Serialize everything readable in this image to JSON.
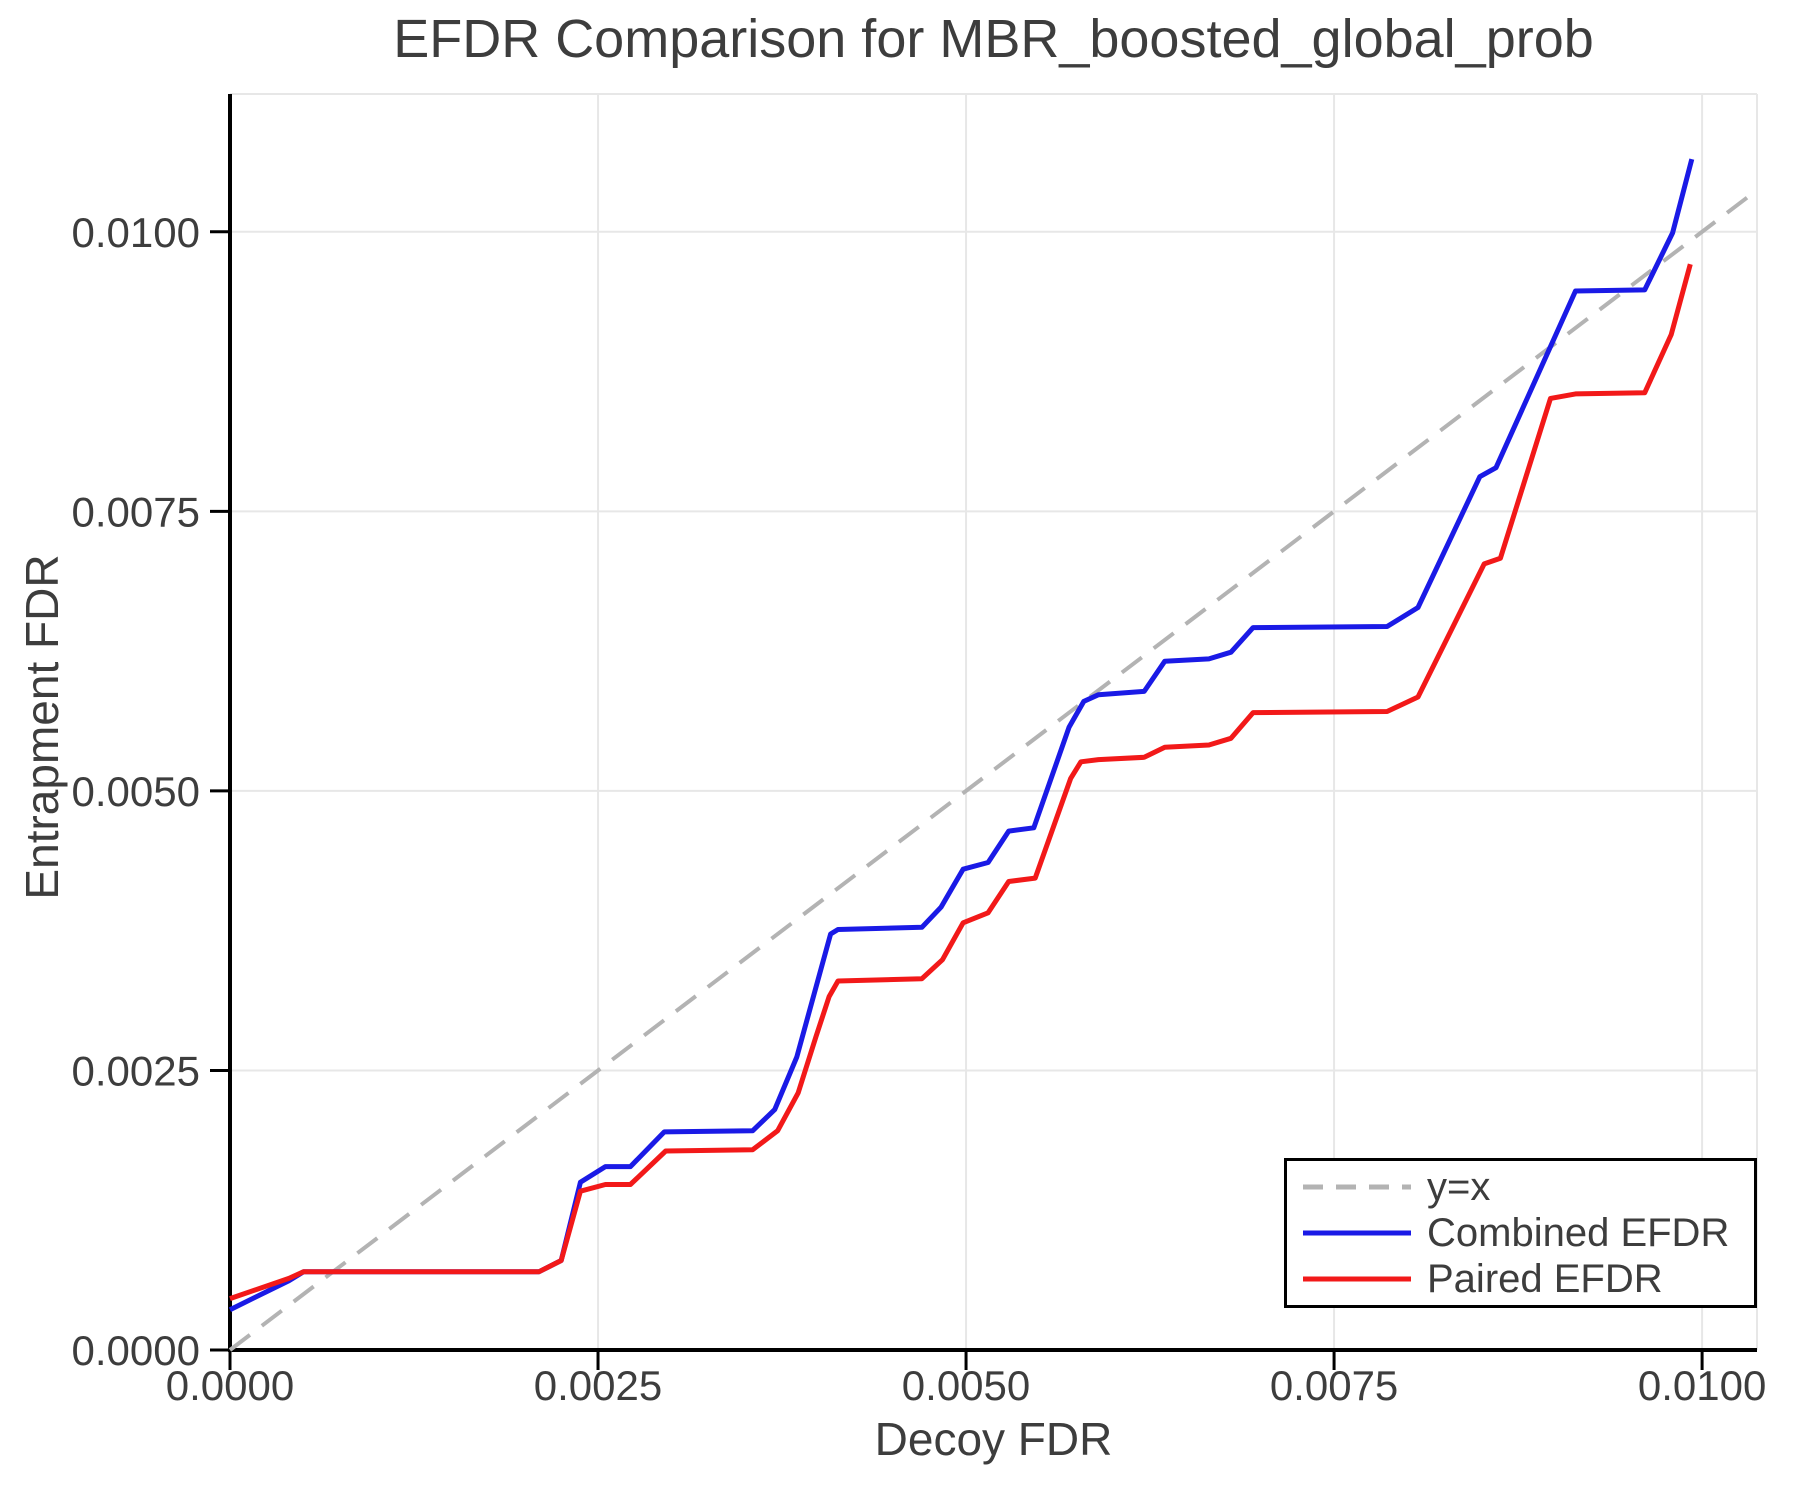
{
  "chart_data": {
    "type": "line",
    "title": "EFDR Comparison for MBR_boosted_global_prob",
    "xlabel": "Decoy FDR",
    "ylabel": "Entrapment FDR",
    "xlim": [
      0,
      0.010373
    ],
    "ylim": [
      0,
      0.011232
    ],
    "grid": true,
    "legend_position": "bottom-right",
    "x_ticks": {
      "values": [
        0,
        0.0025,
        0.005,
        0.0075,
        0.01
      ],
      "labels": [
        "0.0000",
        "0.0025",
        "0.0050",
        "0.0075",
        "0.0100"
      ]
    },
    "y_ticks": {
      "values": [
        0,
        0.0025,
        0.005,
        0.0075,
        0.01
      ],
      "labels": [
        "0.0000",
        "0.0025",
        "0.0050",
        "0.0075",
        "0.0100"
      ]
    },
    "series": [
      {
        "name": "y=x",
        "role": "reference",
        "color": "#b3b3b3",
        "dash": true,
        "points": [
          [
            0,
            0
          ],
          [
            0.010373,
            0.010373
          ]
        ]
      },
      {
        "name": "Combined EFDR",
        "role": "data",
        "color": "#1a1ae6",
        "dash": false,
        "points": [
          [
            0.0,
            0.00036
          ],
          [
            0.0004,
            0.00062
          ],
          [
            0.0005,
            0.0007
          ],
          [
            0.0021,
            0.0007
          ],
          [
            0.00225,
            0.0008
          ],
          [
            0.00238,
            0.0015
          ],
          [
            0.00255,
            0.00164
          ],
          [
            0.00272,
            0.00164
          ],
          [
            0.00295,
            0.00195
          ],
          [
            0.00355,
            0.00196
          ],
          [
            0.0037,
            0.00215
          ],
          [
            0.00385,
            0.00262
          ],
          [
            0.00408,
            0.00372
          ],
          [
            0.00413,
            0.00376
          ],
          [
            0.0047,
            0.00378
          ],
          [
            0.00483,
            0.00396
          ],
          [
            0.00498,
            0.0043
          ],
          [
            0.00515,
            0.00436
          ],
          [
            0.00529,
            0.00464
          ],
          [
            0.00546,
            0.00467
          ],
          [
            0.0057,
            0.00557
          ],
          [
            0.0058,
            0.0058
          ],
          [
            0.0059,
            0.00586
          ],
          [
            0.00621,
            0.00589
          ],
          [
            0.00635,
            0.00616
          ],
          [
            0.00665,
            0.00618
          ],
          [
            0.0068,
            0.00624
          ],
          [
            0.00695,
            0.00646
          ],
          [
            0.00786,
            0.00647
          ],
          [
            0.00807,
            0.00664
          ],
          [
            0.00849,
            0.00781
          ],
          [
            0.0086,
            0.00789
          ],
          [
            0.00914,
            0.00947
          ],
          [
            0.00961,
            0.00948
          ],
          [
            0.0098,
            0.00999
          ],
          [
            0.00993,
            0.01065
          ]
        ]
      },
      {
        "name": "Paired EFDR",
        "role": "data",
        "color": "#f21919",
        "dash": false,
        "points": [
          [
            0.0,
            0.00046
          ],
          [
            0.0004,
            0.00064
          ],
          [
            0.0005,
            0.0007
          ],
          [
            0.0021,
            0.0007
          ],
          [
            0.00225,
            0.0008
          ],
          [
            0.00238,
            0.00142
          ],
          [
            0.00255,
            0.00148
          ],
          [
            0.00272,
            0.00148
          ],
          [
            0.00296,
            0.00178
          ],
          [
            0.00355,
            0.00179
          ],
          [
            0.00372,
            0.00196
          ],
          [
            0.00386,
            0.0023
          ],
          [
            0.00398,
            0.0028
          ],
          [
            0.00407,
            0.00316
          ],
          [
            0.00413,
            0.0033
          ],
          [
            0.0047,
            0.00332
          ],
          [
            0.00484,
            0.00349
          ],
          [
            0.00498,
            0.00382
          ],
          [
            0.00515,
            0.00391
          ],
          [
            0.00529,
            0.00419
          ],
          [
            0.00547,
            0.00422
          ],
          [
            0.00571,
            0.00511
          ],
          [
            0.00578,
            0.00526
          ],
          [
            0.0059,
            0.00528
          ],
          [
            0.00621,
            0.0053
          ],
          [
            0.00635,
            0.00539
          ],
          [
            0.00665,
            0.00541
          ],
          [
            0.0068,
            0.00547
          ],
          [
            0.00695,
            0.0057
          ],
          [
            0.00786,
            0.00571
          ],
          [
            0.00807,
            0.00584
          ],
          [
            0.00852,
            0.00703
          ],
          [
            0.00863,
            0.00708
          ],
          [
            0.00897,
            0.00851
          ],
          [
            0.00914,
            0.00855
          ],
          [
            0.00961,
            0.00856
          ],
          [
            0.00979,
            0.00908
          ],
          [
            0.00992,
            0.00971
          ]
        ]
      }
    ]
  },
  "colors": {
    "background": "#ffffff",
    "grid": "#e7e7e7",
    "frame": "#e7e7e7",
    "axis": "#000000",
    "text": "#3d3d3d",
    "tick": "#000000"
  }
}
